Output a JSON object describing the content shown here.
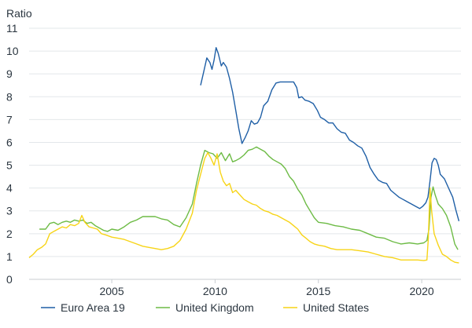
{
  "chart_data": {
    "type": "line",
    "ylabel": "Ratio",
    "ylim": [
      0,
      11
    ],
    "yticks": [
      0,
      1,
      2,
      3,
      4,
      5,
      6,
      7,
      8,
      9,
      10,
      11
    ],
    "xlim": [
      2001.0,
      2021.9
    ],
    "xticks": [
      2005,
      2010,
      2015,
      2020
    ],
    "grid": "horizontal",
    "legend_position": "bottom",
    "series": [
      {
        "name": "Euro Area 19",
        "color": "#1f5fa6",
        "points": [
          [
            2009.3,
            8.5
          ],
          [
            2009.45,
            9.1
          ],
          [
            2009.6,
            9.7
          ],
          [
            2009.75,
            9.5
          ],
          [
            2009.85,
            9.2
          ],
          [
            2009.95,
            9.6
          ],
          [
            2010.05,
            10.15
          ],
          [
            2010.15,
            9.9
          ],
          [
            2010.3,
            9.35
          ],
          [
            2010.4,
            9.5
          ],
          [
            2010.55,
            9.3
          ],
          [
            2010.7,
            8.8
          ],
          [
            2010.85,
            8.2
          ],
          [
            2011.0,
            7.4
          ],
          [
            2011.15,
            6.6
          ],
          [
            2011.3,
            5.95
          ],
          [
            2011.45,
            6.2
          ],
          [
            2011.6,
            6.5
          ],
          [
            2011.75,
            6.95
          ],
          [
            2011.9,
            6.8
          ],
          [
            2012.05,
            6.85
          ],
          [
            2012.2,
            7.1
          ],
          [
            2012.35,
            7.6
          ],
          [
            2012.55,
            7.8
          ],
          [
            2012.75,
            8.3
          ],
          [
            2012.95,
            8.6
          ],
          [
            2013.15,
            8.65
          ],
          [
            2013.4,
            8.65
          ],
          [
            2013.6,
            8.65
          ],
          [
            2013.8,
            8.65
          ],
          [
            2013.95,
            8.4
          ],
          [
            2014.05,
            7.95
          ],
          [
            2014.2,
            8.0
          ],
          [
            2014.35,
            7.85
          ],
          [
            2014.55,
            7.8
          ],
          [
            2014.75,
            7.7
          ],
          [
            2014.95,
            7.4
          ],
          [
            2015.1,
            7.1
          ],
          [
            2015.3,
            7.0
          ],
          [
            2015.5,
            6.85
          ],
          [
            2015.7,
            6.85
          ],
          [
            2015.9,
            6.6
          ],
          [
            2016.1,
            6.45
          ],
          [
            2016.3,
            6.4
          ],
          [
            2016.5,
            6.1
          ],
          [
            2016.7,
            6.0
          ],
          [
            2016.9,
            5.85
          ],
          [
            2017.1,
            5.75
          ],
          [
            2017.3,
            5.4
          ],
          [
            2017.5,
            4.9
          ],
          [
            2017.7,
            4.6
          ],
          [
            2017.9,
            4.35
          ],
          [
            2018.1,
            4.25
          ],
          [
            2018.3,
            4.2
          ],
          [
            2018.5,
            3.9
          ],
          [
            2018.7,
            3.75
          ],
          [
            2018.9,
            3.6
          ],
          [
            2019.1,
            3.5
          ],
          [
            2019.3,
            3.4
          ],
          [
            2019.5,
            3.3
          ],
          [
            2019.7,
            3.2
          ],
          [
            2019.9,
            3.1
          ],
          [
            2020.05,
            3.2
          ],
          [
            2020.2,
            3.35
          ],
          [
            2020.3,
            3.6
          ],
          [
            2020.4,
            4.3
          ],
          [
            2020.5,
            5.1
          ],
          [
            2020.6,
            5.3
          ],
          [
            2020.7,
            5.25
          ],
          [
            2020.8,
            5.0
          ],
          [
            2020.9,
            4.6
          ],
          [
            2021.1,
            4.4
          ],
          [
            2021.3,
            4.0
          ],
          [
            2021.5,
            3.6
          ],
          [
            2021.65,
            3.05
          ],
          [
            2021.8,
            2.55
          ]
        ]
      },
      {
        "name": "United Kingdom",
        "color": "#6dbb45",
        "points": [
          [
            2001.5,
            2.2
          ],
          [
            2001.8,
            2.2
          ],
          [
            2002.0,
            2.45
          ],
          [
            2002.2,
            2.5
          ],
          [
            2002.4,
            2.4
          ],
          [
            2002.6,
            2.5
          ],
          [
            2002.8,
            2.55
          ],
          [
            2003.0,
            2.5
          ],
          [
            2003.2,
            2.6
          ],
          [
            2003.4,
            2.55
          ],
          [
            2003.6,
            2.6
          ],
          [
            2003.8,
            2.45
          ],
          [
            2004.0,
            2.5
          ],
          [
            2004.2,
            2.35
          ],
          [
            2004.4,
            2.25
          ],
          [
            2004.6,
            2.15
          ],
          [
            2004.8,
            2.1
          ],
          [
            2005.0,
            2.2
          ],
          [
            2005.3,
            2.15
          ],
          [
            2005.6,
            2.3
          ],
          [
            2005.9,
            2.5
          ],
          [
            2006.2,
            2.6
          ],
          [
            2006.5,
            2.75
          ],
          [
            2006.8,
            2.75
          ],
          [
            2007.1,
            2.75
          ],
          [
            2007.4,
            2.65
          ],
          [
            2007.7,
            2.6
          ],
          [
            2008.0,
            2.4
          ],
          [
            2008.3,
            2.3
          ],
          [
            2008.6,
            2.7
          ],
          [
            2008.9,
            3.3
          ],
          [
            2009.1,
            4.2
          ],
          [
            2009.3,
            5.0
          ],
          [
            2009.5,
            5.65
          ],
          [
            2009.7,
            5.55
          ],
          [
            2009.9,
            5.5
          ],
          [
            2010.1,
            5.3
          ],
          [
            2010.3,
            5.55
          ],
          [
            2010.5,
            5.2
          ],
          [
            2010.7,
            5.5
          ],
          [
            2010.85,
            5.15
          ],
          [
            2011.0,
            5.2
          ],
          [
            2011.2,
            5.3
          ],
          [
            2011.4,
            5.45
          ],
          [
            2011.6,
            5.65
          ],
          [
            2011.8,
            5.7
          ],
          [
            2012.0,
            5.8
          ],
          [
            2012.2,
            5.7
          ],
          [
            2012.4,
            5.6
          ],
          [
            2012.6,
            5.4
          ],
          [
            2012.8,
            5.25
          ],
          [
            2013.0,
            5.15
          ],
          [
            2013.2,
            5.05
          ],
          [
            2013.4,
            4.85
          ],
          [
            2013.6,
            4.5
          ],
          [
            2013.8,
            4.3
          ],
          [
            2014.0,
            3.95
          ],
          [
            2014.2,
            3.7
          ],
          [
            2014.4,
            3.3
          ],
          [
            2014.6,
            3.0
          ],
          [
            2014.8,
            2.7
          ],
          [
            2015.0,
            2.5
          ],
          [
            2015.4,
            2.45
          ],
          [
            2015.8,
            2.35
          ],
          [
            2016.2,
            2.3
          ],
          [
            2016.6,
            2.2
          ],
          [
            2017.0,
            2.15
          ],
          [
            2017.4,
            2.0
          ],
          [
            2017.8,
            1.85
          ],
          [
            2018.2,
            1.8
          ],
          [
            2018.6,
            1.65
          ],
          [
            2019.0,
            1.55
          ],
          [
            2019.4,
            1.6
          ],
          [
            2019.8,
            1.55
          ],
          [
            2020.1,
            1.6
          ],
          [
            2020.25,
            1.7
          ],
          [
            2020.35,
            2.2
          ],
          [
            2020.45,
            3.6
          ],
          [
            2020.55,
            4.05
          ],
          [
            2020.65,
            3.7
          ],
          [
            2020.8,
            3.3
          ],
          [
            2021.0,
            3.1
          ],
          [
            2021.2,
            2.8
          ],
          [
            2021.4,
            2.3
          ],
          [
            2021.6,
            1.55
          ],
          [
            2021.75,
            1.3
          ]
        ]
      },
      {
        "name": "United States",
        "color": "#f7d417",
        "points": [
          [
            2001.0,
            0.95
          ],
          [
            2001.2,
            1.1
          ],
          [
            2001.4,
            1.3
          ],
          [
            2001.6,
            1.4
          ],
          [
            2001.8,
            1.55
          ],
          [
            2002.0,
            2.0
          ],
          [
            2002.2,
            2.1
          ],
          [
            2002.4,
            2.2
          ],
          [
            2002.6,
            2.3
          ],
          [
            2002.8,
            2.25
          ],
          [
            2003.0,
            2.4
          ],
          [
            2003.2,
            2.35
          ],
          [
            2003.4,
            2.45
          ],
          [
            2003.55,
            2.8
          ],
          [
            2003.7,
            2.5
          ],
          [
            2003.9,
            2.3
          ],
          [
            2004.1,
            2.25
          ],
          [
            2004.3,
            2.2
          ],
          [
            2004.5,
            2.0
          ],
          [
            2004.7,
            1.95
          ],
          [
            2005.0,
            1.85
          ],
          [
            2005.3,
            1.8
          ],
          [
            2005.6,
            1.75
          ],
          [
            2005.9,
            1.65
          ],
          [
            2006.2,
            1.55
          ],
          [
            2006.5,
            1.45
          ],
          [
            2006.8,
            1.4
          ],
          [
            2007.1,
            1.35
          ],
          [
            2007.4,
            1.3
          ],
          [
            2007.7,
            1.35
          ],
          [
            2008.0,
            1.45
          ],
          [
            2008.3,
            1.7
          ],
          [
            2008.6,
            2.2
          ],
          [
            2008.9,
            2.9
          ],
          [
            2009.1,
            3.9
          ],
          [
            2009.3,
            4.6
          ],
          [
            2009.5,
            5.3
          ],
          [
            2009.65,
            5.55
          ],
          [
            2009.8,
            5.3
          ],
          [
            2009.95,
            5.0
          ],
          [
            2010.1,
            5.5
          ],
          [
            2010.25,
            4.7
          ],
          [
            2010.4,
            4.3
          ],
          [
            2010.55,
            4.1
          ],
          [
            2010.7,
            4.2
          ],
          [
            2010.85,
            3.8
          ],
          [
            2011.0,
            3.9
          ],
          [
            2011.2,
            3.7
          ],
          [
            2011.4,
            3.5
          ],
          [
            2011.6,
            3.4
          ],
          [
            2011.8,
            3.3
          ],
          [
            2012.0,
            3.25
          ],
          [
            2012.2,
            3.1
          ],
          [
            2012.4,
            3.0
          ],
          [
            2012.6,
            2.95
          ],
          [
            2012.8,
            2.85
          ],
          [
            2013.0,
            2.8
          ],
          [
            2013.2,
            2.7
          ],
          [
            2013.4,
            2.6
          ],
          [
            2013.6,
            2.5
          ],
          [
            2013.8,
            2.35
          ],
          [
            2014.0,
            2.2
          ],
          [
            2014.2,
            1.95
          ],
          [
            2014.4,
            1.8
          ],
          [
            2014.6,
            1.65
          ],
          [
            2014.8,
            1.55
          ],
          [
            2015.0,
            1.5
          ],
          [
            2015.3,
            1.45
          ],
          [
            2015.6,
            1.35
          ],
          [
            2015.9,
            1.3
          ],
          [
            2016.2,
            1.3
          ],
          [
            2016.6,
            1.3
          ],
          [
            2017.0,
            1.25
          ],
          [
            2017.4,
            1.2
          ],
          [
            2017.8,
            1.1
          ],
          [
            2018.2,
            1.0
          ],
          [
            2018.6,
            0.95
          ],
          [
            2019.0,
            0.85
          ],
          [
            2019.4,
            0.85
          ],
          [
            2019.8,
            0.85
          ],
          [
            2020.1,
            0.82
          ],
          [
            2020.25,
            0.85
          ],
          [
            2020.32,
            1.8
          ],
          [
            2020.4,
            4.0
          ],
          [
            2020.48,
            3.0
          ],
          [
            2020.6,
            2.0
          ],
          [
            2020.8,
            1.5
          ],
          [
            2021.0,
            1.1
          ],
          [
            2021.2,
            1.0
          ],
          [
            2021.4,
            0.85
          ],
          [
            2021.6,
            0.75
          ],
          [
            2021.8,
            0.72
          ]
        ]
      }
    ]
  }
}
